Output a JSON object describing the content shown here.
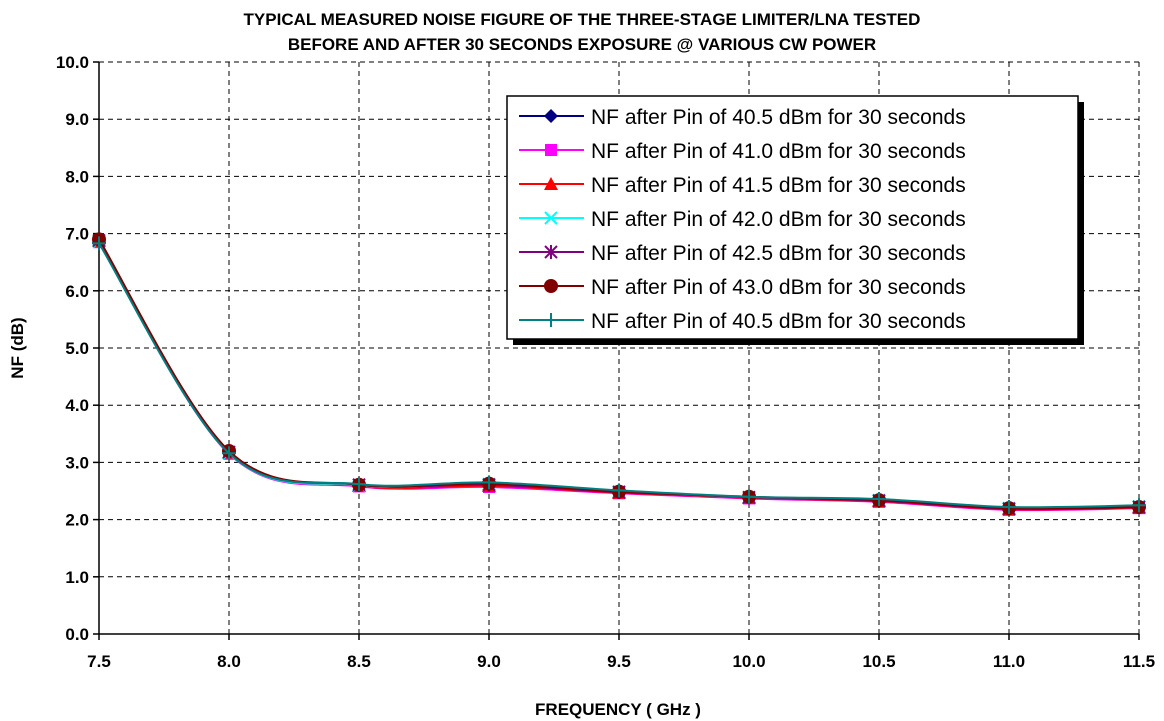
{
  "chart_data": {
    "type": "line",
    "title": [
      "TYPICAL MEASURED NOISE FIGURE OF THE THREE-STAGE LIMITER/LNA TESTED",
      "BEFORE AND AFTER 30 SECONDS EXPOSURE @ VARIOUS CW POWER"
    ],
    "xlabel": "FREQUENCY ( GHz )",
    "ylabel": "NF (dB)",
    "xlim": [
      7.5,
      11.5
    ],
    "ylim": [
      0.0,
      10.0
    ],
    "x_ticks": [
      7.5,
      8.0,
      8.5,
      9.0,
      9.5,
      10.0,
      10.5,
      11.0,
      11.5
    ],
    "x_tick_labels": [
      "7.5",
      "8.0",
      "8.5",
      "9.0",
      "9.5",
      "10.0",
      "10.5",
      "11.0",
      "11.5"
    ],
    "y_ticks": [
      0,
      1,
      2,
      3,
      4,
      5,
      6,
      7,
      8,
      9,
      10
    ],
    "y_tick_labels": [
      "0.0",
      "1.0",
      "2.0",
      "3.0",
      "4.0",
      "5.0",
      "6.0",
      "7.0",
      "8.0",
      "9.0",
      "10.0"
    ],
    "grid": true,
    "legend_position": "top-right",
    "x": [
      7.5,
      8.0,
      8.5,
      9.0,
      9.5,
      10.0,
      10.5,
      11.0,
      11.5
    ],
    "series": [
      {
        "name": "NF after Pin of 40.5 dBm for 30 seconds",
        "color": "#000080",
        "marker": "diamond",
        "values": [
          6.85,
          3.18,
          2.6,
          2.6,
          2.48,
          2.38,
          2.33,
          2.18,
          2.22
        ]
      },
      {
        "name": "NF after Pin of 41.0 dBm for 30 seconds",
        "color": "#ff00ff",
        "marker": "square",
        "values": [
          6.85,
          3.15,
          2.58,
          2.57,
          2.46,
          2.37,
          2.31,
          2.17,
          2.2
        ]
      },
      {
        "name": "NF after Pin of 41.5 dBm for 30 seconds",
        "color": "#ff0000",
        "marker": "triangle",
        "values": [
          6.87,
          3.17,
          2.59,
          2.59,
          2.47,
          2.38,
          2.32,
          2.18,
          2.21
        ]
      },
      {
        "name": "NF after Pin of 42.0 dBm for 30 seconds",
        "color": "#00ffff",
        "marker": "x",
        "values": [
          6.86,
          3.16,
          2.6,
          2.62,
          2.49,
          2.39,
          2.34,
          2.2,
          2.23
        ]
      },
      {
        "name": "NF after Pin of 42.5 dBm for 30 seconds",
        "color": "#800080",
        "marker": "star",
        "values": [
          6.88,
          3.18,
          2.61,
          2.61,
          2.48,
          2.39,
          2.33,
          2.19,
          2.22
        ]
      },
      {
        "name": "NF after Pin of 43.0 dBm for 30 seconds",
        "color": "#800000",
        "marker": "circle",
        "values": [
          6.9,
          3.2,
          2.61,
          2.63,
          2.49,
          2.4,
          2.34,
          2.2,
          2.22
        ]
      },
      {
        "name": "NF after Pin of 40.5 dBm for 30 seconds",
        "color": "#008080",
        "marker": "plus",
        "values": [
          6.83,
          3.16,
          2.62,
          2.65,
          2.51,
          2.4,
          2.36,
          2.22,
          2.25
        ]
      }
    ]
  }
}
